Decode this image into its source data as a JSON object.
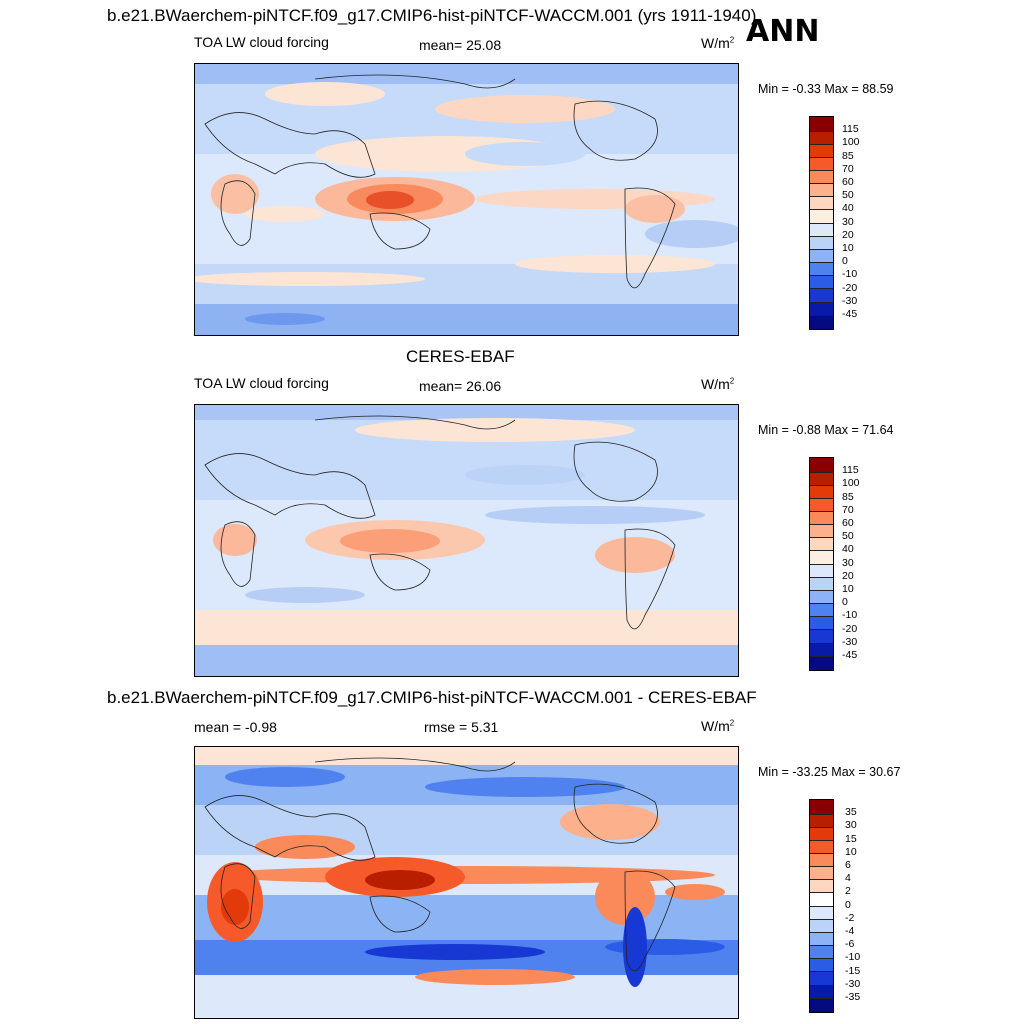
{
  "figure": {
    "season": "ANN"
  },
  "panel_top": {
    "case_title": "b.e21.BWaerchem-piNTCF.f09_g17.CMIP6-hist-piNTCF-WACCM.001 (yrs 1911-1940)",
    "variable": "TOA LW cloud forcing",
    "mean_label": "mean=",
    "mean_value": "25.08",
    "units_base": "W/m",
    "units_exp": "2",
    "minmax": "Min =  -0.33 Max =  88.59",
    "colorbar_ticks": [
      "115",
      "100",
      "85",
      "70",
      "60",
      "50",
      "40",
      "30",
      "20",
      "10",
      "0",
      "-10",
      "-20",
      "-30",
      "-45"
    ]
  },
  "panel_mid": {
    "case_title": "CERES-EBAF",
    "variable": "TOA LW cloud forcing",
    "mean_label": "mean=",
    "mean_value": "26.06",
    "units_base": "W/m",
    "units_exp": "2",
    "minmax": "Min =  -0.88 Max =  71.64",
    "colorbar_ticks": [
      "115",
      "100",
      "85",
      "70",
      "60",
      "50",
      "40",
      "30",
      "20",
      "10",
      "0",
      "-10",
      "-20",
      "-30",
      "-45"
    ]
  },
  "panel_bot": {
    "case_title": "b.e21.BWaerchem-piNTCF.f09_g17.CMIP6-hist-piNTCF-WACCM.001 - CERES-EBAF",
    "mean_label": "mean =",
    "mean_value": "-0.98",
    "rmse_label": "rmse =",
    "rmse_value": "5.31",
    "units_base": "W/m",
    "units_exp": "2",
    "minmax": "Min = -33.25 Max =  30.67",
    "colorbar_ticks": [
      "35",
      "30",
      "15",
      "10",
      "6",
      "4",
      "2",
      "0",
      "-2",
      "-4",
      "-6",
      "-10",
      "-15",
      "-30",
      "-35"
    ]
  },
  "colors": {
    "field_scale": [
      "#8a0000",
      "#b81e00",
      "#e23a0a",
      "#f75a2a",
      "#fb8a5a",
      "#fcb08c",
      "#fdd7c0",
      "#fdeee2",
      "#dde9fb",
      "#bcd3f8",
      "#8cb4f4",
      "#4f82ee",
      "#2a5ce6",
      "#1738d2",
      "#0a1aa8",
      "#050a80"
    ],
    "diff_scale": [
      "#8a0000",
      "#b81e00",
      "#e23a0a",
      "#f75a2a",
      "#fb8a5a",
      "#fcb08c",
      "#fdd7c0",
      "#ffffff",
      "#dde9fb",
      "#bcd3f8",
      "#8cb4f4",
      "#4f82ee",
      "#2a5ce6",
      "#1738d2",
      "#0a1aa8",
      "#050a80"
    ]
  }
}
